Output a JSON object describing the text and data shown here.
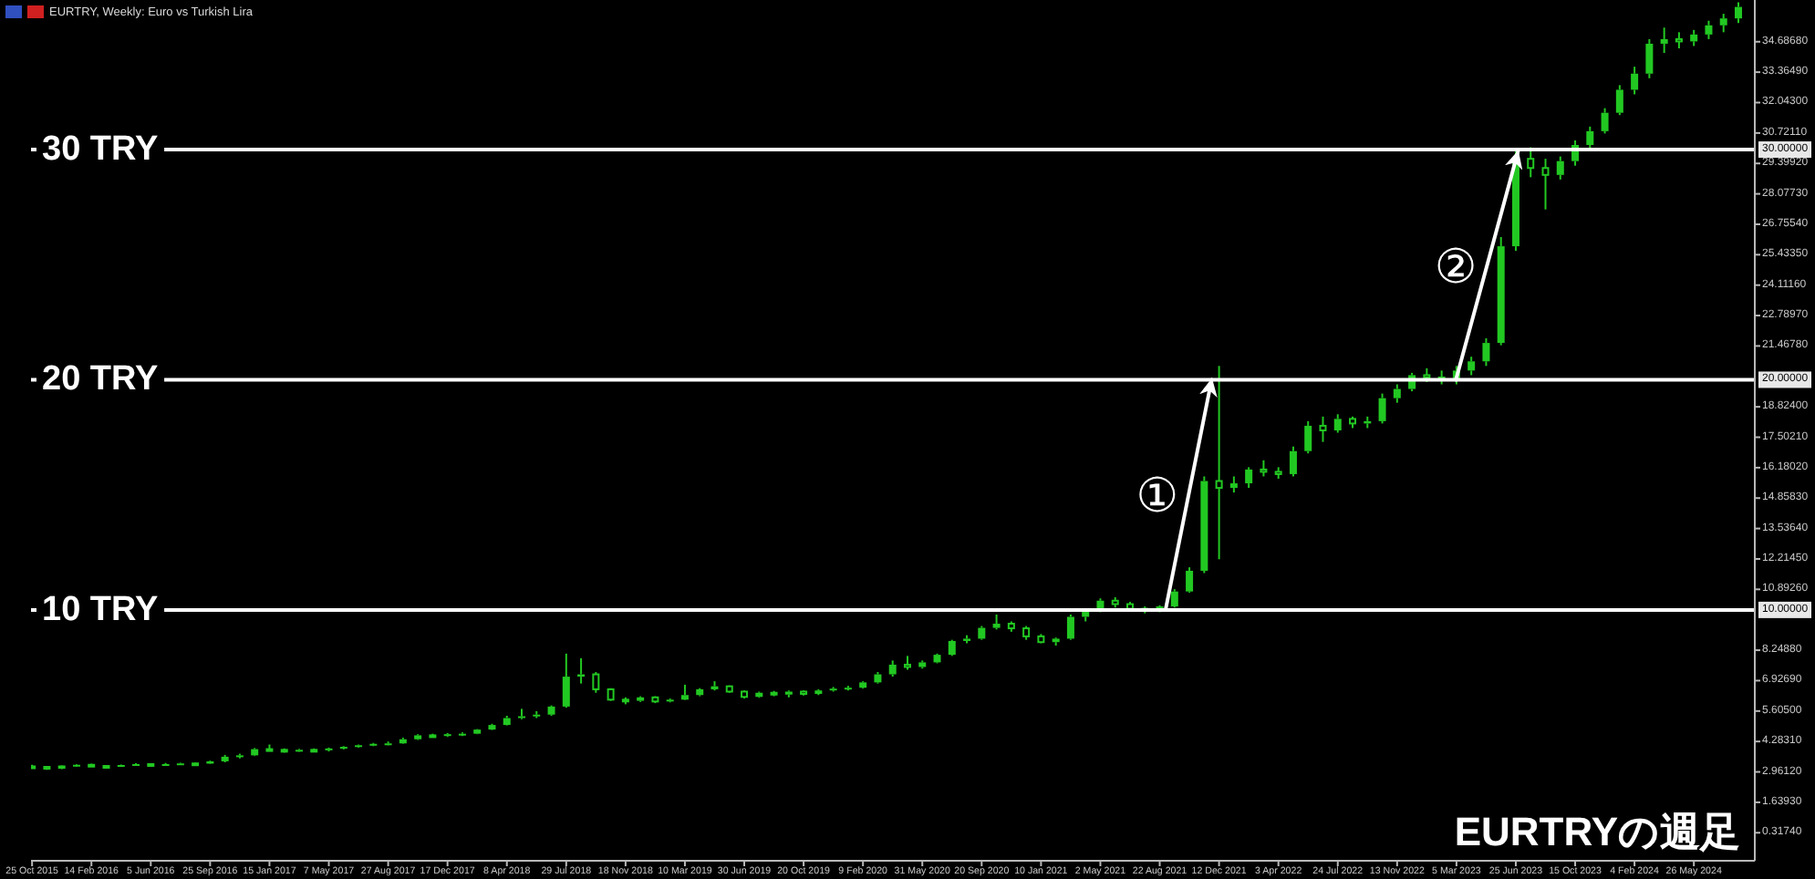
{
  "chart_data": {
    "type": "candlestick",
    "title": "EURTRY, Weekly: Euro vs Turkish Lira",
    "series": [
      {
        "color": "#22c822",
        "x": [
          "2015-10-25",
          "2015-11-22",
          "2015-12-20",
          "2016-01-17",
          "2016-02-14",
          "2016-03-13",
          "2016-04-10",
          "2016-05-08",
          "2016-06-05",
          "2016-07-03",
          "2016-07-31",
          "2016-08-28",
          "2016-09-25",
          "2016-10-23",
          "2016-11-20",
          "2016-12-18",
          "2017-01-15",
          "2017-02-12",
          "2017-03-12",
          "2017-04-09",
          "2017-05-07",
          "2017-06-04",
          "2017-07-02",
          "2017-07-30",
          "2017-08-27",
          "2017-09-24",
          "2017-10-22",
          "2017-11-19",
          "2017-12-17",
          "2018-01-14",
          "2018-02-11",
          "2018-03-11",
          "2018-04-08",
          "2018-05-06",
          "2018-06-03",
          "2018-07-01",
          "2018-07-29",
          "2018-08-26",
          "2018-09-23",
          "2018-10-21",
          "2018-11-18",
          "2018-12-16",
          "2019-01-13",
          "2019-02-10",
          "2019-03-10",
          "2019-04-07",
          "2019-05-05",
          "2019-06-02",
          "2019-06-30",
          "2019-07-28",
          "2019-08-25",
          "2019-09-22",
          "2019-10-20",
          "2019-11-17",
          "2019-12-15",
          "2020-01-12",
          "2020-02-09",
          "2020-03-08",
          "2020-04-05",
          "2020-05-03",
          "2020-05-31",
          "2020-06-28",
          "2020-07-26",
          "2020-08-23",
          "2020-09-20",
          "2020-10-18",
          "2020-11-15",
          "2020-12-13",
          "2021-01-10",
          "2021-02-07",
          "2021-03-07",
          "2021-04-04",
          "2021-05-02",
          "2021-05-30",
          "2021-06-27",
          "2021-07-25",
          "2021-08-22",
          "2021-09-19",
          "2021-10-17",
          "2021-11-14",
          "2021-12-12",
          "2022-01-09",
          "2022-02-06",
          "2022-03-06",
          "2022-04-03",
          "2022-05-01",
          "2022-05-29",
          "2022-06-26",
          "2022-07-24",
          "2022-08-21",
          "2022-09-18",
          "2022-10-16",
          "2022-11-13",
          "2022-12-11",
          "2023-01-08",
          "2023-02-05",
          "2023-03-05",
          "2023-04-02",
          "2023-04-30",
          "2023-05-28",
          "2023-06-25",
          "2023-07-23",
          "2023-08-20",
          "2023-09-17",
          "2023-10-15",
          "2023-11-12",
          "2023-12-10",
          "2024-01-07",
          "2024-02-04",
          "2024-03-03",
          "2024-03-31",
          "2024-04-28",
          "2024-05-26",
          "2024-06-23",
          "2024-07-21",
          "2024-08-18"
        ],
        "ohlc": [
          [
            3.2,
            3.27,
            3.12,
            3.18
          ],
          [
            3.18,
            3.22,
            3.05,
            3.1
          ],
          [
            3.1,
            3.26,
            3.08,
            3.24
          ],
          [
            3.24,
            3.3,
            3.2,
            3.27
          ],
          [
            3.27,
            3.32,
            3.18,
            3.22
          ],
          [
            3.22,
            3.26,
            3.16,
            3.2
          ],
          [
            3.2,
            3.28,
            3.18,
            3.26
          ],
          [
            3.26,
            3.34,
            3.24,
            3.3
          ],
          [
            3.3,
            3.33,
            3.2,
            3.24
          ],
          [
            3.24,
            3.35,
            3.22,
            3.3
          ],
          [
            3.3,
            3.36,
            3.28,
            3.33
          ],
          [
            3.33,
            3.36,
            3.28,
            3.32
          ],
          [
            3.32,
            3.45,
            3.3,
            3.42
          ],
          [
            3.42,
            3.7,
            3.38,
            3.62
          ],
          [
            3.62,
            3.75,
            3.55,
            3.68
          ],
          [
            3.68,
            4.0,
            3.65,
            3.95
          ],
          [
            3.95,
            4.15,
            3.88,
            3.92
          ],
          [
            3.92,
            3.98,
            3.8,
            3.86
          ],
          [
            3.86,
            3.96,
            3.84,
            3.92
          ],
          [
            3.92,
            3.98,
            3.86,
            3.9
          ],
          [
            3.9,
            4.02,
            3.85,
            3.98
          ],
          [
            3.98,
            4.08,
            3.94,
            4.05
          ],
          [
            4.05,
            4.15,
            4.02,
            4.12
          ],
          [
            4.12,
            4.22,
            4.08,
            4.18
          ],
          [
            4.18,
            4.28,
            4.12,
            4.2
          ],
          [
            4.2,
            4.45,
            4.18,
            4.38
          ],
          [
            4.38,
            4.6,
            4.35,
            4.55
          ],
          [
            4.55,
            4.62,
            4.45,
            4.52
          ],
          [
            4.52,
            4.65,
            4.48,
            4.6
          ],
          [
            4.6,
            4.68,
            4.52,
            4.62
          ],
          [
            4.62,
            4.82,
            4.6,
            4.8
          ],
          [
            4.8,
            5.05,
            4.78,
            5.0
          ],
          [
            5.0,
            5.4,
            4.98,
            5.3
          ],
          [
            5.3,
            5.7,
            5.25,
            5.38
          ],
          [
            5.38,
            5.6,
            5.3,
            5.45
          ],
          [
            5.45,
            5.85,
            5.4,
            5.8
          ],
          [
            5.8,
            8.1,
            5.75,
            7.1
          ],
          [
            7.1,
            7.9,
            6.8,
            7.2
          ],
          [
            7.2,
            7.3,
            6.4,
            6.55
          ],
          [
            6.55,
            6.6,
            6.05,
            6.1
          ],
          [
            6.1,
            6.2,
            5.9,
            6.05
          ],
          [
            6.05,
            6.25,
            6.0,
            6.2
          ],
          [
            6.2,
            6.25,
            5.95,
            6.02
          ],
          [
            6.02,
            6.15,
            5.98,
            6.1
          ],
          [
            6.1,
            6.75,
            6.08,
            6.3
          ],
          [
            6.3,
            6.6,
            6.25,
            6.55
          ],
          [
            6.55,
            6.9,
            6.5,
            6.68
          ],
          [
            6.68,
            6.72,
            6.4,
            6.45
          ],
          [
            6.45,
            6.5,
            6.15,
            6.22
          ],
          [
            6.22,
            6.45,
            6.18,
            6.4
          ],
          [
            6.4,
            6.48,
            6.25,
            6.32
          ],
          [
            6.32,
            6.5,
            6.2,
            6.45
          ],
          [
            6.45,
            6.5,
            6.28,
            6.35
          ],
          [
            6.35,
            6.55,
            6.3,
            6.5
          ],
          [
            6.5,
            6.65,
            6.45,
            6.58
          ],
          [
            6.58,
            6.7,
            6.5,
            6.62
          ],
          [
            6.62,
            6.9,
            6.58,
            6.85
          ],
          [
            6.85,
            7.3,
            6.8,
            7.2
          ],
          [
            7.2,
            7.8,
            7.1,
            7.62
          ],
          [
            7.62,
            8.0,
            7.4,
            7.52
          ],
          [
            7.52,
            7.8,
            7.45,
            7.72
          ],
          [
            7.72,
            8.1,
            7.68,
            8.05
          ],
          [
            8.05,
            8.7,
            8.0,
            8.65
          ],
          [
            8.65,
            8.9,
            8.55,
            8.75
          ],
          [
            8.75,
            9.3,
            8.7,
            9.22
          ],
          [
            9.22,
            9.8,
            9.15,
            9.4
          ],
          [
            9.4,
            9.5,
            9.05,
            9.2
          ],
          [
            9.2,
            9.3,
            8.7,
            8.85
          ],
          [
            8.85,
            8.95,
            8.55,
            8.6
          ],
          [
            8.6,
            8.8,
            8.45,
            8.75
          ],
          [
            8.75,
            9.8,
            8.7,
            9.7
          ],
          [
            9.7,
            10.05,
            9.5,
            9.95
          ],
          [
            9.95,
            10.5,
            9.9,
            10.4
          ],
          [
            10.4,
            10.55,
            10.1,
            10.25
          ],
          [
            10.25,
            10.35,
            9.95,
            10.05
          ],
          [
            10.05,
            10.15,
            9.85,
            9.98
          ],
          [
            9.98,
            10.2,
            9.9,
            10.15
          ],
          [
            10.15,
            10.9,
            10.1,
            10.8
          ],
          [
            10.8,
            11.85,
            10.75,
            11.7
          ],
          [
            11.7,
            15.8,
            11.6,
            15.6
          ],
          [
            15.6,
            20.6,
            12.2,
            15.3
          ],
          [
            15.3,
            15.8,
            15.1,
            15.5
          ],
          [
            15.5,
            16.2,
            15.3,
            16.1
          ],
          [
            16.1,
            16.5,
            15.8,
            16.0
          ],
          [
            16.0,
            16.2,
            15.7,
            15.9
          ],
          [
            15.9,
            17.1,
            15.8,
            16.9
          ],
          [
            16.9,
            18.2,
            16.8,
            18.0
          ],
          [
            18.0,
            18.4,
            17.3,
            17.8
          ],
          [
            17.8,
            18.5,
            17.7,
            18.3
          ],
          [
            18.3,
            18.4,
            17.9,
            18.1
          ],
          [
            18.1,
            18.4,
            17.9,
            18.2
          ],
          [
            18.2,
            19.4,
            18.1,
            19.2
          ],
          [
            19.2,
            19.8,
            19.0,
            19.6
          ],
          [
            19.6,
            20.3,
            19.5,
            20.2
          ],
          [
            20.2,
            20.5,
            19.9,
            20.1
          ],
          [
            20.1,
            20.4,
            19.8,
            20.0
          ],
          [
            20.0,
            20.6,
            19.8,
            20.4
          ],
          [
            20.4,
            21.0,
            20.2,
            20.8
          ],
          [
            20.8,
            21.8,
            20.6,
            21.6
          ],
          [
            21.6,
            26.2,
            21.5,
            25.8
          ],
          [
            25.8,
            30.0,
            25.6,
            29.6
          ],
          [
            29.6,
            30.1,
            28.8,
            29.2
          ],
          [
            29.2,
            29.6,
            27.4,
            28.9
          ],
          [
            28.9,
            29.7,
            28.7,
            29.5
          ],
          [
            29.5,
            30.4,
            29.3,
            30.2
          ],
          [
            30.2,
            31.0,
            30.0,
            30.8
          ],
          [
            30.8,
            31.8,
            30.7,
            31.6
          ],
          [
            31.6,
            32.8,
            31.5,
            32.6
          ],
          [
            32.6,
            33.6,
            32.4,
            33.3
          ],
          [
            33.3,
            34.8,
            33.1,
            34.6
          ],
          [
            34.6,
            35.3,
            34.2,
            34.8
          ],
          [
            34.8,
            35.1,
            34.4,
            34.7
          ],
          [
            34.7,
            35.2,
            34.5,
            35.0
          ],
          [
            35.0,
            35.6,
            34.8,
            35.4
          ],
          [
            35.4,
            35.9,
            35.1,
            35.7
          ],
          [
            35.7,
            36.4,
            35.5,
            36.2
          ]
        ]
      },
      {
        "type": "line",
        "color": "#ffffff",
        "x": [
          "2021-09-02",
          "2021-11-28"
        ],
        "values": [
          10,
          20
        ]
      },
      {
        "type": "line",
        "color": "#ffffff",
        "x": [
          "2023-03-04",
          "2023-06-29"
        ],
        "values": [
          20,
          29.9
        ]
      }
    ],
    "xlim": [
      "2015-10-23",
      "2024-09-18"
    ],
    "xticks": [
      {
        "value": "2015-10-25",
        "label": "25 Oct 2015"
      },
      {
        "value": "2016-02-14",
        "label": "14 Feb 2016"
      },
      {
        "value": "2016-06-05",
        "label": "5 Jun 2016"
      },
      {
        "value": "2016-09-25",
        "label": "25 Sep 2016"
      },
      {
        "value": "2017-01-15",
        "label": "15 Jan 2017"
      },
      {
        "value": "2017-05-07",
        "label": "7 May 2017"
      },
      {
        "value": "2017-08-27",
        "label": "27 Aug 2017"
      },
      {
        "value": "2017-12-17",
        "label": "17 Dec 2017"
      },
      {
        "value": "2018-04-08",
        "label": "8 Apr 2018"
      },
      {
        "value": "2018-07-29",
        "label": "29 Jul 2018"
      },
      {
        "value": "2018-11-18",
        "label": "18 Nov 2018"
      },
      {
        "value": "2019-03-10",
        "label": "10 Mar 2019"
      },
      {
        "value": "2019-06-30",
        "label": "30 Jun 2019"
      },
      {
        "value": "2019-10-20",
        "label": "20 Oct 2019"
      },
      {
        "value": "2020-02-09",
        "label": "9 Feb 2020"
      },
      {
        "value": "2020-05-31",
        "label": "31 May 2020"
      },
      {
        "value": "2020-09-20",
        "label": "20 Sep 2020"
      },
      {
        "value": "2021-01-10",
        "label": "10 Jan 2021"
      },
      {
        "value": "2021-05-02",
        "label": "2 May 2021"
      },
      {
        "value": "2021-08-22",
        "label": "22 Aug 2021"
      },
      {
        "value": "2021-12-12",
        "label": "12 Dec 2021"
      },
      {
        "value": "2022-04-03",
        "label": "3 Apr 2022"
      },
      {
        "value": "2022-07-24",
        "label": "24 Jul 2022"
      },
      {
        "value": "2022-11-13",
        "label": "13 Nov 2022"
      },
      {
        "value": "2023-03-05",
        "label": "5 Mar 2023"
      },
      {
        "value": "2023-06-25",
        "label": "25 Jun 2023"
      },
      {
        "value": "2023-10-15",
        "label": "15 Oct 2023"
      },
      {
        "value": "2024-02-04",
        "label": "4 Feb 2024"
      },
      {
        "value": "2024-05-26",
        "label": "26 May 2024"
      }
    ],
    "ylim": [
      -0.9,
      36.5
    ],
    "yticks": [
      {
        "value": 0.3174,
        "label": "0.31740"
      },
      {
        "value": 1.6393,
        "label": "1.63930"
      },
      {
        "value": 2.9612,
        "label": "2.96120"
      },
      {
        "value": 4.2831,
        "label": "4.28310"
      },
      {
        "value": 5.605,
        "label": "5.60500"
      },
      {
        "value": 6.9269,
        "label": "6.92690"
      },
      {
        "value": 8.2488,
        "label": "8.24880"
      },
      {
        "value": 10,
        "label": "10.00000"
      },
      {
        "value": 10.8926,
        "label": "10.89260"
      },
      {
        "value": 12.2145,
        "label": "12.21450"
      },
      {
        "value": 13.5364,
        "label": "13.53640"
      },
      {
        "value": 14.8583,
        "label": "14.85830"
      },
      {
        "value": 16.1802,
        "label": "16.18020"
      },
      {
        "value": 17.5021,
        "label": "17.50210"
      },
      {
        "value": 18.824,
        "label": "18.82400"
      },
      {
        "value": 20,
        "label": "20.00000"
      },
      {
        "value": 21.4678,
        "label": "21.46780"
      },
      {
        "value": 22.7897,
        "label": "22.78970"
      },
      {
        "value": 24.1116,
        "label": "24.11160"
      },
      {
        "value": 25.4335,
        "label": "25.43350"
      },
      {
        "value": 26.7554,
        "label": "26.75540"
      },
      {
        "value": 28.0773,
        "label": "28.07730"
      },
      {
        "value": 29.3992,
        "label": "29.39920"
      },
      {
        "value": 30,
        "label": "30.00000"
      },
      {
        "value": 30.7211,
        "label": "30.72110"
      },
      {
        "value": 32.043,
        "label": "32.04300"
      },
      {
        "value": 33.3649,
        "label": "33.36490"
      },
      {
        "value": 34.6868,
        "label": "34.68680"
      }
    ],
    "ref_lines": [
      {
        "axis": "y",
        "value": 10,
        "label": "10 TRY",
        "color": "#ffffff"
      },
      {
        "axis": "y",
        "value": 20,
        "label": "20 TRY",
        "color": "#ffffff"
      },
      {
        "axis": "y",
        "value": 30,
        "label": "30 TRY",
        "color": "#ffffff"
      }
    ],
    "annotations": [
      {
        "text": "①",
        "x": "2021-10-15",
        "y": 15
      },
      {
        "text": "②",
        "x": "2023-05-01",
        "y": 24.95
      },
      "EURTRYの週足"
    ]
  }
}
